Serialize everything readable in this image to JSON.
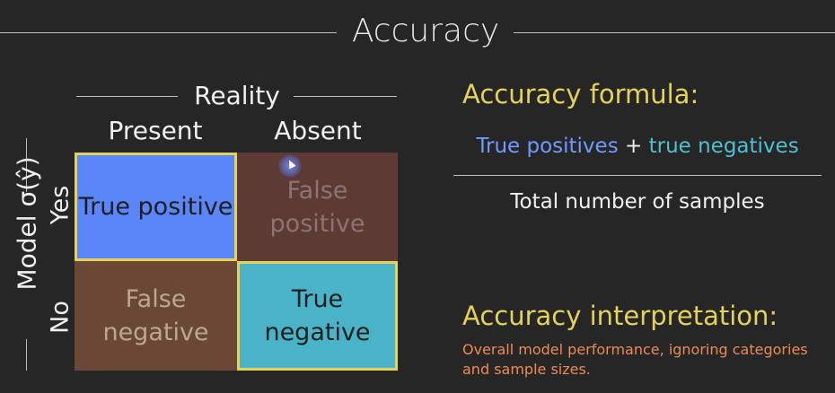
{
  "title": "Accuracy",
  "matrix": {
    "reality_label": "Reality",
    "columns": [
      "Present",
      "Absent"
    ],
    "model_label": "Model σ(ŷ)",
    "rows": [
      "Yes",
      "No"
    ],
    "cells": {
      "tp": "True positive",
      "fp": "False positive",
      "fn": "False negative",
      "tn": "True negative"
    }
  },
  "formula": {
    "heading": "Accuracy formula:",
    "numerator_tp": "True positives",
    "numerator_plus": "+",
    "numerator_tn": "true negatives",
    "denominator": "Total number of samples"
  },
  "interpretation": {
    "heading": "Accuracy interpretation:",
    "text": "Overall model performance, ignoring categories and sample sizes."
  },
  "colors": {
    "true_positive": "#5b86f7",
    "true_negative": "#4ab3c8",
    "false_positive": "#5e3a34",
    "false_negative": "#6b4836",
    "highlight_border": "#e3d35a",
    "heading": "#e3d35a",
    "interpretation_text": "#ee8b55"
  }
}
